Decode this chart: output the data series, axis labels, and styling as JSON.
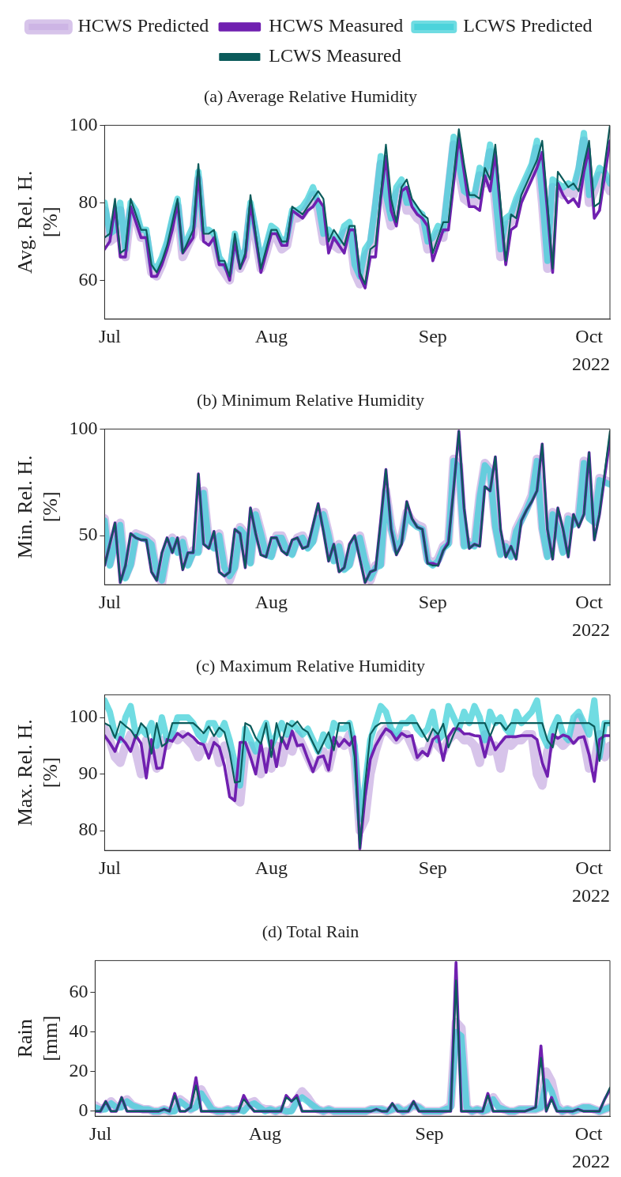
{
  "chart_data": [
    {
      "type": "line",
      "title": "(a) Average Relative Humidity",
      "ylabel": "Avg. Rel. H.\n[%]",
      "legend": "top",
      "annotations": [
        "2022"
      ],
      "xlim": [
        "2022-06-30",
        "2022-10-05"
      ],
      "xticks": [
        {
          "value": "2022-07-01",
          "label": "Jul"
        },
        {
          "value": "2022-08-01",
          "label": "Aug"
        },
        {
          "value": "2022-09-01",
          "label": "Sep"
        },
        {
          "value": "2022-10-01",
          "label": "Oct"
        }
      ],
      "ylim": [
        50,
        100
      ],
      "yticks": [
        60,
        80,
        100
      ],
      "x": [
        "2022-06-30",
        "2022-07-01",
        "2022-07-02",
        "2022-07-03",
        "2022-07-04",
        "2022-07-05",
        "2022-07-06",
        "2022-07-07",
        "2022-07-08",
        "2022-07-09",
        "2022-07-10",
        "2022-07-11",
        "2022-07-12",
        "2022-07-13",
        "2022-07-14",
        "2022-07-15",
        "2022-07-16",
        "2022-07-17",
        "2022-07-18",
        "2022-07-19",
        "2022-07-20",
        "2022-07-21",
        "2022-07-22",
        "2022-07-23",
        "2022-07-24",
        "2022-07-25",
        "2022-07-26",
        "2022-07-27",
        "2022-07-28",
        "2022-07-29",
        "2022-07-30",
        "2022-07-31",
        "2022-08-01",
        "2022-08-02",
        "2022-08-03",
        "2022-08-04",
        "2022-08-05",
        "2022-08-06",
        "2022-08-07",
        "2022-08-08",
        "2022-08-09",
        "2022-08-10",
        "2022-08-11",
        "2022-08-12",
        "2022-08-13",
        "2022-08-14",
        "2022-08-15",
        "2022-08-16",
        "2022-08-17",
        "2022-08-18",
        "2022-08-19",
        "2022-08-20",
        "2022-08-21",
        "2022-08-22",
        "2022-08-23",
        "2022-08-24",
        "2022-08-25",
        "2022-08-26",
        "2022-08-27",
        "2022-08-28",
        "2022-08-29",
        "2022-08-30",
        "2022-08-31",
        "2022-09-01",
        "2022-09-02",
        "2022-09-03",
        "2022-09-04",
        "2022-09-05",
        "2022-09-06",
        "2022-09-07",
        "2022-09-08",
        "2022-09-09",
        "2022-09-10",
        "2022-09-11",
        "2022-09-12",
        "2022-09-13",
        "2022-09-14",
        "2022-09-15",
        "2022-09-16",
        "2022-09-17",
        "2022-09-18",
        "2022-09-19",
        "2022-09-20",
        "2022-09-21",
        "2022-09-22",
        "2022-09-23",
        "2022-09-24",
        "2022-09-25",
        "2022-09-26",
        "2022-09-27",
        "2022-09-28",
        "2022-09-29",
        "2022-09-30",
        "2022-10-01",
        "2022-10-02",
        "2022-10-03",
        "2022-10-04",
        "2022-10-05"
      ],
      "series": [
        {
          "name": "HCWS Predicted",
          "color": "#c9b0e3",
          "values": [
            78,
            70,
            71,
            78,
            66,
            78,
            76,
            71,
            71,
            62,
            61,
            64,
            68,
            74,
            79,
            66,
            69,
            72,
            86,
            71,
            71,
            70,
            64,
            62,
            60,
            70,
            63,
            66,
            78,
            71,
            63,
            67,
            72,
            71,
            68,
            69,
            76,
            76,
            77,
            79,
            82,
            78,
            70,
            71,
            69,
            68,
            72,
            73,
            62,
            59,
            66,
            68,
            78,
            90,
            80,
            74,
            82,
            84,
            78,
            78,
            76,
            75,
            68,
            69,
            72,
            71,
            83,
            95,
            88,
            81,
            80,
            80,
            87,
            85,
            93,
            80,
            66,
            74,
            75,
            79,
            82,
            85,
            88,
            94,
            80,
            63,
            84,
            83,
            82,
            83,
            82,
            87,
            96,
            80,
            83,
            87,
            86,
            83
          ]
        },
        {
          "name": "HCWS Measured",
          "color": "#7020b0",
          "values": [
            68,
            70,
            79,
            66,
            66,
            79,
            75,
            71,
            71,
            61,
            61,
            64,
            68,
            73,
            80,
            67,
            69,
            71,
            88,
            70,
            69,
            71,
            64,
            64,
            60,
            70,
            63,
            66,
            80,
            71,
            62,
            67,
            72,
            72,
            69,
            69,
            78,
            77,
            76,
            78,
            79,
            81,
            79,
            67,
            71,
            69,
            67,
            73,
            73,
            61,
            58,
            66,
            66,
            81,
            92,
            78,
            74,
            83,
            84,
            79,
            77,
            76,
            74,
            65,
            69,
            73,
            73,
            85,
            97,
            88,
            79,
            79,
            78,
            87,
            83,
            93,
            78,
            64,
            73,
            74,
            80,
            83,
            86,
            89,
            93,
            78,
            62,
            85,
            82,
            80,
            81,
            79,
            88,
            94,
            76,
            78,
            87,
            96
          ]
        },
        {
          "name": "LCWS Predicted",
          "color": "#40d0d8",
          "values": [
            80,
            72,
            73,
            80,
            68,
            80,
            78,
            73,
            73,
            64,
            63,
            66,
            70,
            76,
            81,
            68,
            71,
            74,
            88,
            73,
            73,
            72,
            66,
            64,
            62,
            72,
            65,
            68,
            80,
            73,
            65,
            69,
            74,
            73,
            70,
            71,
            78,
            78,
            79,
            81,
            84,
            80,
            72,
            73,
            71,
            70,
            74,
            75,
            64,
            61,
            68,
            70,
            80,
            92,
            82,
            76,
            84,
            86,
            80,
            80,
            78,
            77,
            70,
            71,
            74,
            73,
            85,
            97,
            90,
            83,
            82,
            82,
            89,
            87,
            95,
            82,
            68,
            76,
            77,
            81,
            84,
            87,
            90,
            96,
            82,
            65,
            86,
            85,
            84,
            85,
            84,
            89,
            98,
            82,
            85,
            89,
            88,
            85
          ]
        },
        {
          "name": "LCWS Measured",
          "color": "#0b5b5b",
          "values": [
            71,
            72,
            81,
            67,
            68,
            81,
            77,
            73,
            73,
            64,
            62,
            65,
            69,
            75,
            81,
            67,
            70,
            73,
            90,
            72,
            72,
            73,
            65,
            65,
            61,
            72,
            63,
            67,
            82,
            72,
            63,
            68,
            73,
            73,
            70,
            70,
            79,
            78,
            77,
            79,
            81,
            83,
            81,
            70,
            73,
            71,
            69,
            74,
            74,
            62,
            59,
            68,
            69,
            82,
            95,
            81,
            75,
            84,
            86,
            81,
            79,
            77,
            76,
            67,
            71,
            75,
            75,
            87,
            99,
            90,
            82,
            82,
            81,
            89,
            86,
            95,
            80,
            65,
            77,
            76,
            82,
            85,
            88,
            91,
            96,
            80,
            63,
            88,
            86,
            84,
            85,
            83,
            90,
            96,
            79,
            80,
            90,
            100
          ]
        }
      ]
    },
    {
      "type": "line",
      "title": "(b) Minimum Relative Humidity",
      "ylabel": "Min. Rel. H.\n[%]",
      "annotations": [
        "2022"
      ],
      "xlim": [
        "2022-06-30",
        "2022-10-05"
      ],
      "xticks": [
        {
          "value": "2022-07-01",
          "label": "Jul"
        },
        {
          "value": "2022-08-01",
          "label": "Aug"
        },
        {
          "value": "2022-09-01",
          "label": "Sep"
        },
        {
          "value": "2022-10-01",
          "label": "Oct"
        }
      ],
      "ylim": [
        27,
        100
      ],
      "yticks": [
        50,
        100
      ],
      "x": [
        "2022-06-30",
        "2022-07-01",
        "2022-07-02",
        "2022-07-03",
        "2022-07-04",
        "2022-07-05",
        "2022-07-06",
        "2022-07-07",
        "2022-07-08",
        "2022-07-09",
        "2022-07-10",
        "2022-07-11",
        "2022-07-12",
        "2022-07-13",
        "2022-07-14",
        "2022-07-15",
        "2022-07-16",
        "2022-07-17",
        "2022-07-18",
        "2022-07-19",
        "2022-07-20",
        "2022-07-21",
        "2022-07-22",
        "2022-07-23",
        "2022-07-24",
        "2022-07-25",
        "2022-07-26",
        "2022-07-27",
        "2022-07-28",
        "2022-07-29",
        "2022-07-30",
        "2022-07-31",
        "2022-08-01",
        "2022-08-02",
        "2022-08-03",
        "2022-08-04",
        "2022-08-05",
        "2022-08-06",
        "2022-08-07",
        "2022-08-08",
        "2022-08-09",
        "2022-08-10",
        "2022-08-11",
        "2022-08-12",
        "2022-08-13",
        "2022-08-14",
        "2022-08-15",
        "2022-08-16",
        "2022-08-17",
        "2022-08-18",
        "2022-08-19",
        "2022-08-20",
        "2022-08-21",
        "2022-08-22",
        "2022-08-23",
        "2022-08-24",
        "2022-08-25",
        "2022-08-26",
        "2022-08-27",
        "2022-08-28",
        "2022-08-29",
        "2022-08-30",
        "2022-08-31",
        "2022-09-01",
        "2022-09-02",
        "2022-09-03",
        "2022-09-04",
        "2022-09-05",
        "2022-09-06",
        "2022-09-07",
        "2022-09-08",
        "2022-09-09",
        "2022-09-10",
        "2022-09-11",
        "2022-09-12",
        "2022-09-13",
        "2022-09-14",
        "2022-09-15",
        "2022-09-16",
        "2022-09-17",
        "2022-09-18",
        "2022-09-19",
        "2022-09-20",
        "2022-09-21",
        "2022-09-22",
        "2022-09-23",
        "2022-09-24",
        "2022-09-25",
        "2022-09-26",
        "2022-09-27",
        "2022-09-28",
        "2022-09-29",
        "2022-09-30",
        "2022-10-01",
        "2022-10-02",
        "2022-10-03",
        "2022-10-04",
        "2022-10-05"
      ],
      "series": [
        {
          "color": "#c9b0e3",
          "values": [
            58,
            37,
            47,
            56,
            31,
            37,
            51,
            50,
            49,
            47,
            32,
            28,
            43,
            49,
            43,
            48,
            37,
            43,
            43,
            71,
            47,
            45,
            51,
            36,
            29,
            36,
            54,
            51,
            38,
            61,
            52,
            42,
            41,
            50,
            50,
            44,
            42,
            49,
            50,
            45,
            48,
            59,
            61,
            51,
            39,
            46,
            35,
            37,
            47,
            50,
            39,
            29,
            36,
            37,
            71,
            54,
            44,
            49,
            61,
            57,
            55,
            54,
            39,
            37,
            39,
            45,
            47,
            86,
            83,
            46,
            47,
            46,
            69,
            84,
            81,
            55,
            42,
            46,
            41,
            53,
            58,
            63,
            69,
            86,
            54,
            41,
            61,
            54,
            43,
            59,
            56,
            59,
            85,
            59,
            57,
            77,
            76,
            75
          ]
        },
        {
          "color": "#7020b0",
          "values": [
            36,
            46,
            56,
            28,
            36,
            51,
            49,
            48,
            48,
            33,
            29,
            42,
            49,
            42,
            49,
            34,
            42,
            42,
            79,
            46,
            44,
            52,
            33,
            31,
            33,
            53,
            51,
            35,
            63,
            51,
            41,
            40,
            49,
            49,
            43,
            41,
            48,
            49,
            44,
            45,
            55,
            65,
            52,
            38,
            46,
            33,
            35,
            46,
            50,
            39,
            28,
            33,
            34,
            57,
            81,
            53,
            41,
            46,
            66,
            58,
            54,
            53,
            37,
            37,
            36,
            43,
            47,
            72,
            99,
            63,
            44,
            46,
            45,
            73,
            71,
            87,
            53,
            40,
            45,
            39,
            57,
            62,
            66,
            71,
            93,
            53,
            39,
            63,
            53,
            40,
            60,
            54,
            60,
            89,
            48,
            60,
            78,
            95
          ]
        },
        {
          "color": "#40d0d8",
          "values": [
            57,
            36,
            46,
            55,
            30,
            36,
            50,
            49,
            48,
            46,
            33,
            29,
            42,
            48,
            42,
            47,
            36,
            42,
            42,
            70,
            46,
            44,
            50,
            35,
            31,
            35,
            53,
            50,
            37,
            60,
            51,
            41,
            40,
            49,
            49,
            43,
            41,
            48,
            49,
            44,
            47,
            58,
            60,
            50,
            38,
            45,
            34,
            36,
            46,
            49,
            38,
            30,
            35,
            36,
            70,
            53,
            43,
            48,
            60,
            56,
            54,
            53,
            38,
            36,
            38,
            44,
            46,
            85,
            82,
            45,
            46,
            45,
            68,
            83,
            80,
            54,
            41,
            45,
            40,
            52,
            57,
            62,
            68,
            85,
            53,
            40,
            60,
            53,
            42,
            58,
            55,
            58,
            84,
            58,
            56,
            76,
            75,
            74
          ]
        },
        {
          "color": "#0b5b5b",
          "values": [
            36,
            46,
            56,
            28,
            36,
            51,
            49,
            48,
            48,
            33,
            29,
            42,
            49,
            42,
            49,
            34,
            42,
            42,
            79,
            46,
            44,
            52,
            33,
            31,
            33,
            53,
            51,
            35,
            63,
            51,
            41,
            40,
            49,
            49,
            43,
            41,
            48,
            49,
            44,
            45,
            55,
            65,
            52,
            38,
            46,
            33,
            35,
            46,
            50,
            39,
            28,
            33,
            34,
            57,
            81,
            53,
            41,
            46,
            66,
            58,
            54,
            53,
            37,
            36,
            36,
            43,
            46,
            72,
            99,
            63,
            44,
            46,
            45,
            73,
            71,
            87,
            53,
            40,
            45,
            39,
            57,
            62,
            66,
            71,
            93,
            53,
            39,
            63,
            53,
            40,
            60,
            54,
            60,
            89,
            48,
            60,
            80,
            99
          ]
        }
      ]
    },
    {
      "type": "line",
      "title": "(c) Maximum Relative Humidity",
      "ylabel": "Max. Rel. H.\n[%]",
      "annotations": [
        "2022"
      ],
      "xlim": [
        "2022-06-30",
        "2022-10-05"
      ],
      "xticks": [
        {
          "value": "2022-07-01",
          "label": "Jul"
        },
        {
          "value": "2022-08-01",
          "label": "Aug"
        },
        {
          "value": "2022-09-01",
          "label": "Sep"
        },
        {
          "value": "2022-10-01",
          "label": "Oct"
        }
      ],
      "ylim": [
        76.5,
        104
      ],
      "yticks": [
        80,
        90,
        100
      ],
      "x": [
        "2022-06-30",
        "2022-07-01",
        "2022-07-02",
        "2022-07-03",
        "2022-07-04",
        "2022-07-05",
        "2022-07-06",
        "2022-07-07",
        "2022-07-08",
        "2022-07-09",
        "2022-07-10",
        "2022-07-11",
        "2022-07-12",
        "2022-07-13",
        "2022-07-14",
        "2022-07-15",
        "2022-07-16",
        "2022-07-17",
        "2022-07-18",
        "2022-07-19",
        "2022-07-20",
        "2022-07-21",
        "2022-07-22",
        "2022-07-23",
        "2022-07-24",
        "2022-07-25",
        "2022-07-26",
        "2022-07-27",
        "2022-07-28",
        "2022-07-29",
        "2022-07-30",
        "2022-07-31",
        "2022-08-01",
        "2022-08-02",
        "2022-08-03",
        "2022-08-04",
        "2022-08-05",
        "2022-08-06",
        "2022-08-07",
        "2022-08-08",
        "2022-08-09",
        "2022-08-10",
        "2022-08-11",
        "2022-08-12",
        "2022-08-13",
        "2022-08-14",
        "2022-08-15",
        "2022-08-16",
        "2022-08-17",
        "2022-08-18",
        "2022-08-19",
        "2022-08-20",
        "2022-08-21",
        "2022-08-22",
        "2022-08-23",
        "2022-08-24",
        "2022-08-25",
        "2022-08-26",
        "2022-08-27",
        "2022-08-28",
        "2022-08-29",
        "2022-08-30",
        "2022-08-31",
        "2022-09-01",
        "2022-09-02",
        "2022-09-03",
        "2022-09-04",
        "2022-09-05",
        "2022-09-06",
        "2022-09-07",
        "2022-09-08",
        "2022-09-09",
        "2022-09-10",
        "2022-09-11",
        "2022-09-12",
        "2022-09-13",
        "2022-09-14",
        "2022-09-15",
        "2022-09-16",
        "2022-09-17",
        "2022-09-18",
        "2022-09-19",
        "2022-09-20",
        "2022-09-21",
        "2022-09-22",
        "2022-09-23",
        "2022-09-24",
        "2022-09-25",
        "2022-09-26",
        "2022-09-27",
        "2022-09-28",
        "2022-09-29",
        "2022-09-30",
        "2022-10-01",
        "2022-10-02",
        "2022-10-03",
        "2022-10-04",
        "2022-10-05"
      ],
      "series": [
        {
          "color": "#c9b0e3",
          "values": [
            98,
            96,
            93,
            92,
            95,
            97,
            94,
            90,
            96,
            94,
            91,
            96,
            95,
            97,
            96,
            97,
            96,
            95,
            93,
            95,
            94,
            96,
            92,
            95,
            93,
            86,
            85,
            94,
            95,
            92,
            90,
            94,
            91,
            95,
            92,
            96,
            94,
            97,
            95,
            93,
            91,
            92,
            94,
            91,
            95,
            96,
            95,
            97,
            93,
            80,
            82,
            90,
            94,
            97,
            98,
            97,
            96,
            97,
            97,
            95,
            93,
            94,
            94,
            97,
            95,
            94,
            96,
            97,
            97,
            96,
            96,
            95,
            92,
            97,
            94,
            95,
            91,
            96,
            95,
            96,
            96,
            97,
            97,
            90,
            88,
            94,
            96,
            96,
            95,
            96,
            96,
            100,
            96,
            91,
            92,
            97,
            93,
            95
          ]
        },
        {
          "color": "#7020b0",
          "values": [
            96.8,
            95.5,
            94,
            96.5,
            95.5,
            94,
            96.8,
            95.4,
            89.3,
            96.1,
            91,
            91.1,
            96.1,
            95.8,
            97.2,
            96.5,
            97.2,
            96.5,
            95.5,
            95.2,
            92.8,
            95.6,
            94.8,
            91.5,
            86,
            85.3,
            95.6,
            95.6,
            93,
            90,
            95.5,
            90.3,
            95.9,
            91.3,
            96.4,
            94.5,
            97.6,
            95,
            95.2,
            92.7,
            90.4,
            92.9,
            93.2,
            90.7,
            96.5,
            94.9,
            96.1,
            95.1,
            96.6,
            76.8,
            86,
            92.6,
            95,
            96.6,
            98,
            97.4,
            96,
            97.2,
            96.6,
            96.8,
            92.9,
            94,
            93.2,
            96.1,
            96.8,
            92.4,
            96.6,
            98,
            98,
            97.1,
            97.1,
            96.8,
            96.7,
            93,
            96.8,
            94.3,
            95.5,
            96.6,
            96.6,
            96.6,
            96.8,
            96.8,
            96.8,
            96.1,
            92,
            89.6,
            97,
            96.3,
            96.9,
            96.6,
            95.4,
            96.4,
            96.6,
            93.4,
            88.7,
            96.1,
            96.8,
            96.8
          ]
        },
        {
          "color": "#40d0d8",
          "values": [
            103,
            101,
            97,
            96,
            100,
            102,
            97,
            98,
            97,
            99,
            95,
            100,
            96,
            97,
            100,
            100,
            100,
            99,
            97,
            96,
            99,
            99,
            97,
            99,
            96,
            92,
            88,
            98,
            96,
            94,
            97,
            99,
            95,
            97,
            99,
            97,
            99,
            98,
            97,
            98,
            96,
            94,
            97,
            95,
            99,
            98,
            98,
            99,
            95,
            82,
            88,
            96,
            99,
            102,
            101,
            98,
            97,
            99,
            99,
            100,
            98,
            97,
            98,
            101,
            96,
            97,
            102,
            100,
            98,
            101,
            99,
            102,
            100,
            96,
            101,
            99,
            100,
            98,
            97,
            101,
            99,
            100,
            101,
            103,
            97,
            95,
            98,
            100,
            97,
            96,
            100,
            101,
            99,
            97,
            103,
            93,
            99,
            99
          ]
        },
        {
          "color": "#0b5b5b",
          "values": [
            99,
            98.5,
            96.4,
            99.3,
            98.5,
            97.8,
            96.4,
            99,
            98,
            93.6,
            99,
            94.9,
            95.6,
            99,
            99,
            99,
            99,
            99,
            98.2,
            97.2,
            98.4,
            96.7,
            98.2,
            97.4,
            93.8,
            88.5,
            88.7,
            99,
            98.5,
            96.4,
            95.3,
            99,
            93,
            99,
            95.6,
            99,
            98.4,
            99.3,
            98,
            97.4,
            95.5,
            93.6,
            95.5,
            97.4,
            94.2,
            99,
            99,
            99,
            93,
            77,
            88.3,
            97,
            98.4,
            99,
            99,
            99,
            99,
            99,
            99,
            99,
            99,
            97.4,
            95.8,
            98,
            97,
            98.9,
            94.7,
            97,
            99,
            99,
            99,
            99,
            99,
            99,
            96.7,
            99,
            99,
            97.8,
            99,
            99,
            99,
            99,
            99,
            99,
            99,
            96,
            94.7,
            99,
            99,
            99,
            99,
            99,
            99,
            99,
            98.4,
            92.3,
            99,
            99
          ]
        }
      ]
    },
    {
      "type": "line",
      "title": "(d) Total Rain",
      "ylabel": "Rain\n[mm]",
      "annotations": [
        "2022"
      ],
      "xlim": [
        "2022-06-30",
        "2022-10-05"
      ],
      "xticks": [
        {
          "value": "2022-07-01",
          "label": "Jul"
        },
        {
          "value": "2022-08-01",
          "label": "Aug"
        },
        {
          "value": "2022-09-01",
          "label": "Sep"
        },
        {
          "value": "2022-10-01",
          "label": "Oct"
        }
      ],
      "ylim": [
        -2.5,
        76
      ],
      "yticks": [
        0,
        20,
        40,
        60
      ],
      "x": [
        "2022-06-30",
        "2022-07-01",
        "2022-07-02",
        "2022-07-03",
        "2022-07-04",
        "2022-07-05",
        "2022-07-06",
        "2022-07-07",
        "2022-07-08",
        "2022-07-09",
        "2022-07-10",
        "2022-07-11",
        "2022-07-12",
        "2022-07-13",
        "2022-07-14",
        "2022-07-15",
        "2022-07-16",
        "2022-07-17",
        "2022-07-18",
        "2022-07-19",
        "2022-07-20",
        "2022-07-21",
        "2022-07-22",
        "2022-07-23",
        "2022-07-24",
        "2022-07-25",
        "2022-07-26",
        "2022-07-27",
        "2022-07-28",
        "2022-07-29",
        "2022-07-30",
        "2022-07-31",
        "2022-08-01",
        "2022-08-02",
        "2022-08-03",
        "2022-08-04",
        "2022-08-05",
        "2022-08-06",
        "2022-08-07",
        "2022-08-08",
        "2022-08-09",
        "2022-08-10",
        "2022-08-11",
        "2022-08-12",
        "2022-08-13",
        "2022-08-14",
        "2022-08-15",
        "2022-08-16",
        "2022-08-17",
        "2022-08-18",
        "2022-08-19",
        "2022-08-20",
        "2022-08-21",
        "2022-08-22",
        "2022-08-23",
        "2022-08-24",
        "2022-08-25",
        "2022-08-26",
        "2022-08-27",
        "2022-08-28",
        "2022-08-29",
        "2022-08-30",
        "2022-08-31",
        "2022-09-01",
        "2022-09-02",
        "2022-09-03",
        "2022-09-04",
        "2022-09-05",
        "2022-09-06",
        "2022-09-07",
        "2022-09-08",
        "2022-09-09",
        "2022-09-10",
        "2022-09-11",
        "2022-09-12",
        "2022-09-13",
        "2022-09-14",
        "2022-09-15",
        "2022-09-16",
        "2022-09-17",
        "2022-09-18",
        "2022-09-19",
        "2022-09-20",
        "2022-09-21",
        "2022-09-22",
        "2022-09-23",
        "2022-09-24",
        "2022-09-25",
        "2022-09-26",
        "2022-09-27",
        "2022-09-28",
        "2022-09-29",
        "2022-09-30",
        "2022-10-01",
        "2022-10-02",
        "2022-10-03",
        "2022-10-04",
        "2022-10-05"
      ],
      "series": [
        {
          "color": "#c9b0e3",
          "values": [
            3,
            1,
            2,
            5,
            2,
            3,
            6,
            3,
            2,
            1,
            1,
            0,
            0,
            1,
            0,
            1,
            6,
            4,
            1,
            3,
            11,
            6,
            1,
            0,
            0,
            1,
            0,
            1,
            1,
            4,
            5,
            2,
            1,
            1,
            0,
            1,
            0,
            1,
            6,
            10,
            7,
            3,
            1,
            0,
            1,
            0,
            0,
            0,
            0,
            0,
            0,
            0,
            1,
            1,
            1,
            0,
            1,
            2,
            0,
            1,
            3,
            2,
            0,
            0,
            0,
            0,
            1,
            3,
            45,
            42,
            2,
            0,
            1,
            0,
            1,
            7,
            3,
            1,
            0,
            0,
            1,
            1,
            1,
            1,
            2,
            20,
            15,
            3,
            0,
            1,
            0,
            1,
            2,
            2,
            1,
            0,
            1,
            2
          ]
        },
        {
          "color": "#7020b0",
          "values": [
            0,
            0,
            5,
            0,
            0,
            7,
            0,
            0,
            0,
            0,
            0,
            0,
            0,
            1,
            0,
            9,
            0,
            0,
            2,
            17,
            0,
            0,
            0,
            0,
            0,
            0,
            0,
            0,
            8,
            3,
            0,
            0,
            0,
            0,
            0,
            0,
            8,
            5,
            8,
            0,
            0,
            0,
            0,
            0,
            0,
            0,
            0,
            0,
            0,
            0,
            0,
            0,
            0,
            1,
            0,
            0,
            4,
            0,
            0,
            0,
            5,
            0,
            0,
            0,
            0,
            0,
            0,
            0,
            75,
            0,
            0,
            0,
            0,
            0,
            9,
            0,
            0,
            0,
            0,
            0,
            0,
            0,
            1,
            2,
            33,
            0,
            7,
            0,
            0,
            0,
            0,
            1,
            0,
            0,
            0,
            0,
            6,
            11
          ]
        },
        {
          "color": "#40d0d8",
          "values": [
            2,
            1,
            1,
            4,
            2,
            2,
            5,
            3,
            2,
            1,
            1,
            0,
            0,
            1,
            0,
            0,
            5,
            3,
            1,
            2,
            9,
            5,
            1,
            0,
            0,
            1,
            0,
            1,
            0,
            3,
            4,
            2,
            0,
            1,
            0,
            1,
            0,
            0,
            5,
            7,
            5,
            3,
            1,
            0,
            1,
            0,
            0,
            0,
            0,
            0,
            0,
            0,
            1,
            1,
            1,
            0,
            1,
            2,
            0,
            1,
            3,
            2,
            0,
            0,
            0,
            0,
            1,
            2,
            40,
            38,
            2,
            0,
            1,
            0,
            1,
            6,
            2,
            1,
            0,
            0,
            1,
            1,
            1,
            1,
            2,
            15,
            10,
            2,
            0,
            1,
            0,
            1,
            2,
            2,
            1,
            0,
            1,
            2
          ]
        },
        {
          "color": "#0b5b5b",
          "values": [
            0,
            0,
            5,
            0,
            0,
            7,
            0,
            0,
            0,
            0,
            0,
            0,
            0,
            1,
            0,
            8,
            0,
            0,
            2,
            13,
            0,
            0,
            0,
            0,
            0,
            0,
            0,
            0,
            6,
            3,
            0,
            0,
            0,
            0,
            0,
            0,
            7,
            5,
            7,
            0,
            0,
            0,
            0,
            0,
            0,
            0,
            0,
            0,
            0,
            0,
            0,
            0,
            0,
            1,
            0,
            0,
            4,
            0,
            0,
            0,
            5,
            0,
            0,
            0,
            0,
            0,
            0,
            0,
            66,
            0,
            0,
            0,
            0,
            0,
            8,
            0,
            0,
            0,
            0,
            0,
            0,
            0,
            1,
            2,
            27,
            0,
            6,
            0,
            0,
            0,
            0,
            1,
            0,
            0,
            0,
            0,
            6,
            12
          ]
        }
      ]
    }
  ]
}
